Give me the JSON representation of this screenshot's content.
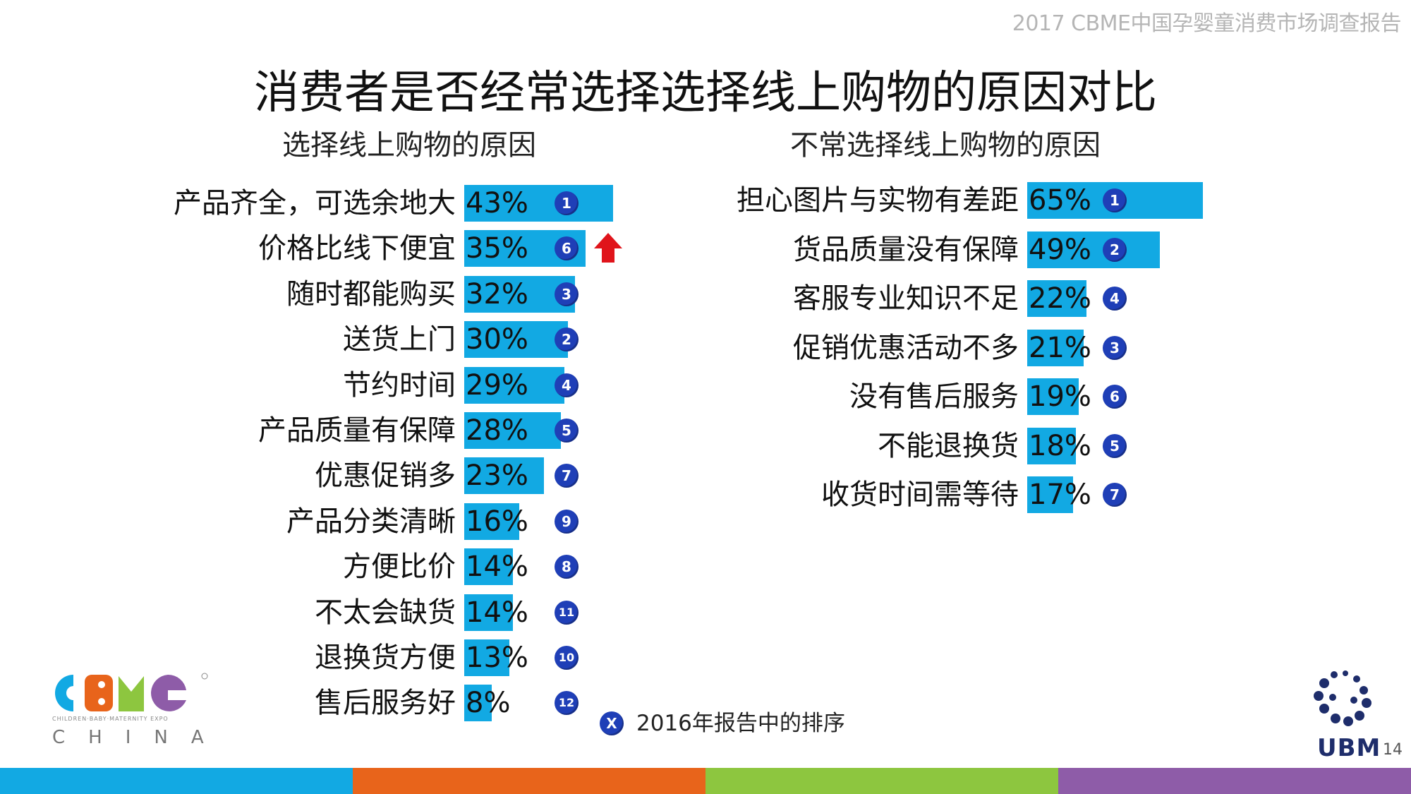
{
  "header": {
    "note": "2017 CBME中国孕婴童消费市场调查报告",
    "title": "消费者是否经常选择选择线上购物的原因对比"
  },
  "chart_data": [
    {
      "type": "bar",
      "title": "选择线上购物的原因",
      "categories": [
        "产品齐全，可选余地大",
        "价格比线下便宜",
        "随时都能购买",
        "送货上门",
        "节约时间",
        "产品质量有保障",
        "优惠促销多",
        "产品分类清晰",
        "方便比价",
        "不太会缺货",
        "退换货方便",
        "售后服务好"
      ],
      "values": [
        43,
        35,
        32,
        30,
        29,
        28,
        23,
        16,
        14,
        14,
        13,
        8
      ],
      "value_labels": [
        "43%",
        "35%",
        "32%",
        "30%",
        "29%",
        "28%",
        "23%",
        "16%",
        "14%",
        "14%",
        "13%",
        "8%"
      ],
      "rank_2016": [
        "1",
        "6",
        "3",
        "2",
        "4",
        "5",
        "7",
        "9",
        "8",
        "11",
        "10",
        "12"
      ],
      "highlight_up": [
        1
      ],
      "bar_color": "#12a9e3",
      "orientation": "horizontal"
    },
    {
      "type": "bar",
      "title": "不常选择线上购物的原因",
      "categories": [
        "担心图片与实物有差距",
        "货品质量没有保障",
        "客服专业知识不足",
        "促销优惠活动不多",
        "没有售后服务",
        "不能退换货",
        "收货时间需等待"
      ],
      "values": [
        65,
        49,
        22,
        21,
        19,
        18,
        17
      ],
      "value_labels": [
        "65%",
        "49%",
        "22%",
        "21%",
        "19%",
        "18%",
        "17%"
      ],
      "rank_2016": [
        "1",
        "2",
        "4",
        "3",
        "6",
        "5",
        "7"
      ],
      "bar_color": "#12a9e3",
      "orientation": "horizontal"
    }
  ],
  "legend": {
    "badge": "X",
    "text": "2016年报告中的排序"
  },
  "logos": {
    "cbme_letters": "CBME",
    "cbme_sub": "CHILDREN·BABY·MATERNITY EXPO",
    "cbme_country": "CHINA",
    "ubm": "UBM"
  },
  "page_number": "14",
  "colors": {
    "accent_bar": "#12a9e3",
    "badge": "#1f3fb7",
    "arrow": "#e0141b",
    "stripe": [
      "#12a9e3",
      "#e8641b",
      "#8dc63f",
      "#8e5ca8"
    ]
  }
}
